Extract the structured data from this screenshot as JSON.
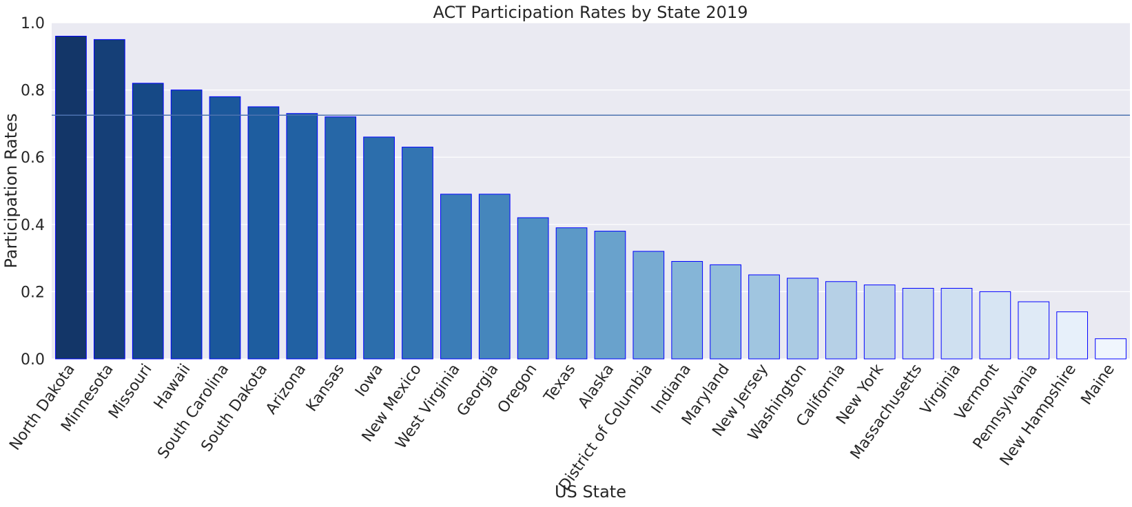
{
  "chart_data": {
    "type": "bar",
    "title": "ACT Participation Rates by State 2019",
    "xlabel": "US State",
    "ylabel": "Participation Rates",
    "ylim": [
      0,
      1.0
    ],
    "yticks": [
      "0.0",
      "0.2",
      "0.4",
      "0.6",
      "0.8",
      "1.0"
    ],
    "categories": [
      "North Dakota",
      "Minnesota",
      "Missouri",
      "Hawaii",
      "South Carolina",
      "South Dakota",
      "Arizona",
      "Kansas",
      "Iowa",
      "New Mexico",
      "West Virginia",
      "Georgia",
      "Oregon",
      "Texas",
      "Alaska",
      "District of Columbia",
      "Indiana",
      "Maryland",
      "New Jersey",
      "Washington",
      "California",
      "New York",
      "Massachusetts",
      "Virginia",
      "Vermont",
      "Pennsylvania",
      "New Hampshire",
      "Maine"
    ],
    "values": [
      0.96,
      0.95,
      0.82,
      0.8,
      0.78,
      0.75,
      0.73,
      0.72,
      0.66,
      0.63,
      0.49,
      0.49,
      0.42,
      0.39,
      0.38,
      0.32,
      0.29,
      0.28,
      0.25,
      0.24,
      0.23,
      0.22,
      0.21,
      0.21,
      0.2,
      0.17,
      0.14,
      0.06
    ],
    "reference_line": 0.725,
    "grid": true,
    "colors": {
      "palette": "Blues_r",
      "bar_edge": "#0000ff",
      "reference_line": "#4c72b0",
      "background": "#eaeaf2",
      "grid": "#ffffff"
    }
  }
}
